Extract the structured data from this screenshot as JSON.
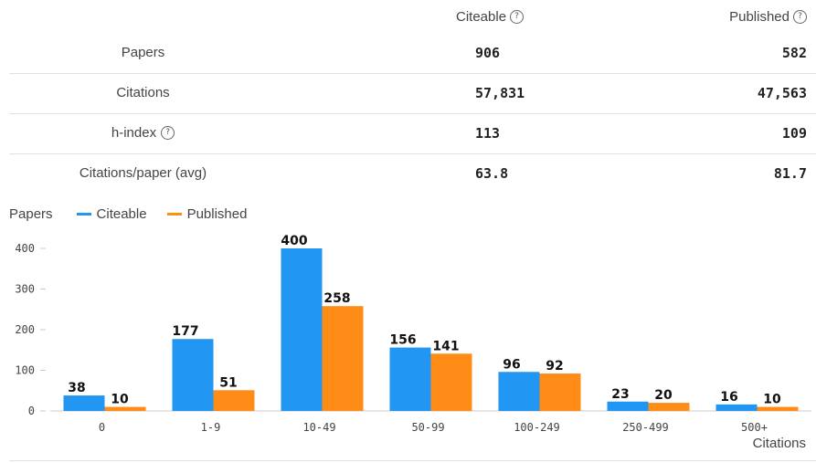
{
  "stats": {
    "header": {
      "citeable": "Citeable",
      "published": "Published"
    },
    "rows": [
      {
        "label": "Papers",
        "citeable": "906",
        "published": "582",
        "help": false
      },
      {
        "label": "Citations",
        "citeable": "57,831",
        "published": "47,563",
        "help": false
      },
      {
        "label": "h-index",
        "citeable": "113",
        "published": "109",
        "help": true
      },
      {
        "label": "Citations/paper (avg)",
        "citeable": "63.8",
        "published": "81.7",
        "help": false
      }
    ],
    "help_glyph": "?"
  },
  "colors": {
    "citeable": "#2196F3",
    "published": "#FF8C17"
  },
  "chart_data": {
    "type": "bar",
    "ylabel": "Papers",
    "xlabel": "Citations",
    "categories": [
      "0",
      "1-9",
      "10-49",
      "50-99",
      "100-249",
      "250-499",
      "500+"
    ],
    "series": [
      {
        "name": "Citeable",
        "values": [
          38,
          177,
          400,
          156,
          96,
          23,
          16
        ]
      },
      {
        "name": "Published",
        "values": [
          10,
          51,
          258,
          141,
          92,
          20,
          10
        ]
      }
    ],
    "ylim": [
      0,
      400
    ],
    "yticks": [
      0,
      100,
      200,
      300,
      400
    ],
    "legend": "top-left",
    "grid": false
  }
}
